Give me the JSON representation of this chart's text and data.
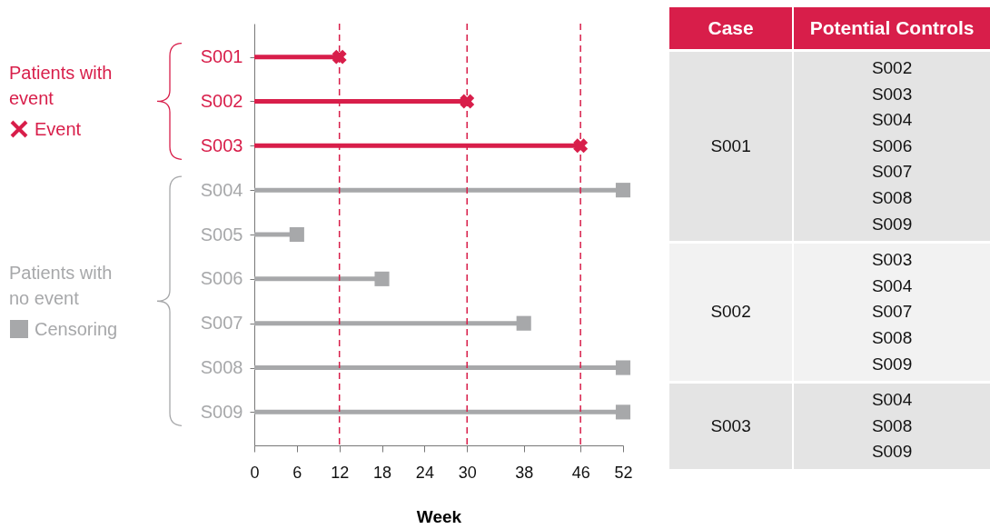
{
  "chart_data": [
    {
      "type": "lollipop",
      "orientation": "horizontal",
      "xlabel": "Week",
      "categories": [
        "S001",
        "S002",
        "S003",
        "S004",
        "S005",
        "S006",
        "S007",
        "S008",
        "S009"
      ],
      "series": [
        {
          "name": "Event",
          "color": "#d81e4a",
          "marker": "cross",
          "values": [
            12,
            30,
            46,
            null,
            null,
            null,
            null,
            null,
            null
          ]
        },
        {
          "name": "Censoring",
          "color": "#a7a8aa",
          "marker": "square",
          "values": [
            null,
            null,
            null,
            52,
            6,
            18,
            38,
            52,
            52
          ]
        }
      ],
      "xlim": [
        0,
        52
      ],
      "xticks": [
        0,
        6,
        12,
        18,
        24,
        30,
        38,
        46,
        52
      ],
      "ref_lines": [
        {
          "axis": "x",
          "value": 12,
          "color": "#d81e4a",
          "line_style": "dashed"
        },
        {
          "axis": "x",
          "value": 30,
          "color": "#d81e4a",
          "line_style": "dashed"
        },
        {
          "axis": "x",
          "value": 46,
          "color": "#d81e4a",
          "line_style": "dashed"
        }
      ],
      "annotations": [
        "Patients with event",
        "Patients with no event"
      ],
      "legend": "left"
    },
    {
      "type": "other",
      "categories": [
        "Case",
        "Potential Controls"
      ],
      "cell_labels": [
        [
          "S001",
          "S002\nS003\nS004\nS006\nS007\nS008\nS009"
        ],
        [
          "S002",
          "S003\nS004\nS007\nS008\nS009"
        ],
        [
          "S003",
          "S004\nS008\nS009"
        ]
      ]
    }
  ]
}
